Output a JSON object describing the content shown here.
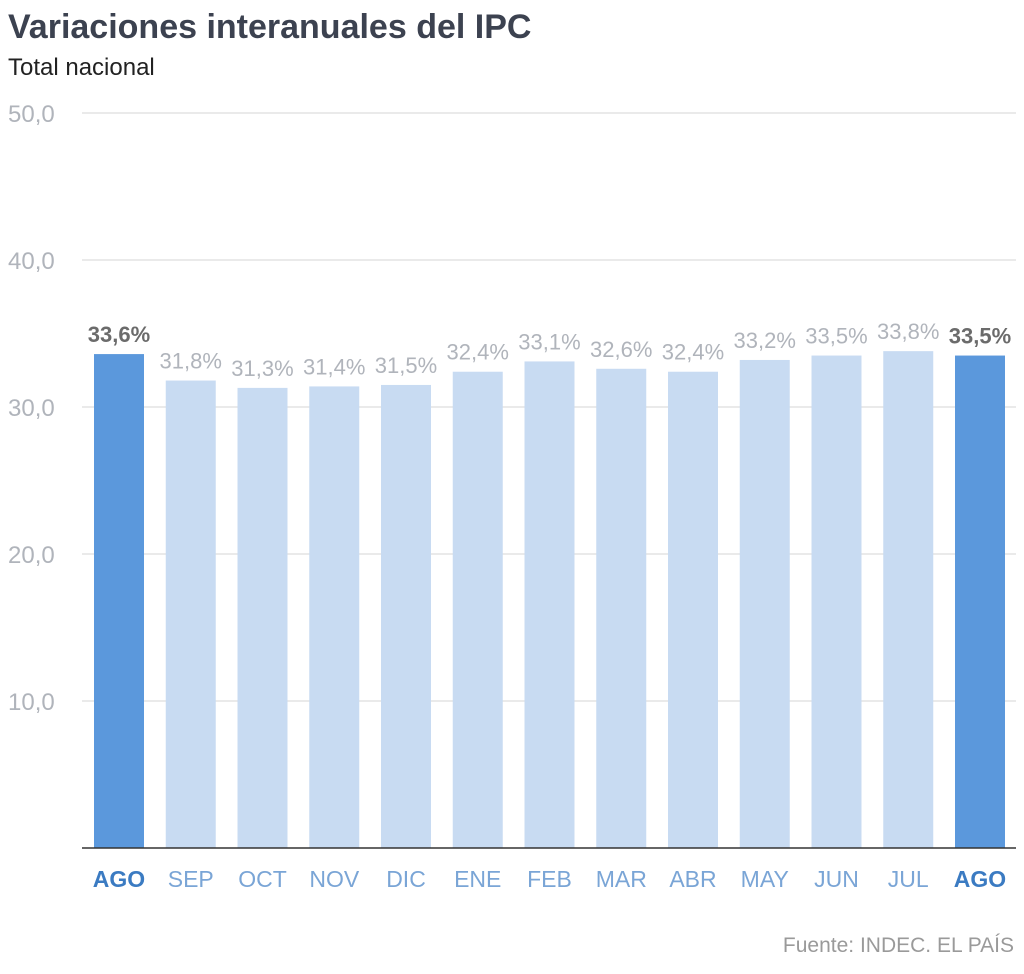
{
  "header": {
    "title": "Variaciones interanuales del IPC",
    "subtitle": "Total nacional"
  },
  "footer": {
    "source": "Fuente: INDEC. EL PAÍS"
  },
  "colors": {
    "highlight_bar": "#5b98dc",
    "bar": "#c8dbf2",
    "highlight_text": "#3b7bc2",
    "label_text": "#b0b4bb",
    "highlight_value_text": "#6b6b6b"
  },
  "chart_data": {
    "type": "bar",
    "title": "Variaciones interanuales del IPC",
    "subtitle": "Total nacional",
    "categories": [
      "AGO",
      "SEP",
      "OCT",
      "NOV",
      "DIC",
      "ENE",
      "FEB",
      "MAR",
      "ABR",
      "MAY",
      "JUN",
      "JUL",
      "AGO"
    ],
    "values": [
      33.6,
      31.8,
      31.3,
      31.4,
      31.5,
      32.4,
      33.1,
      32.6,
      32.4,
      33.2,
      33.5,
      33.8,
      33.5
    ],
    "value_labels": [
      "33,6%",
      "31,8%",
      "31,3%",
      "31,4%",
      "31,5%",
      "32,4%",
      "33,1%",
      "32,6%",
      "32,4%",
      "33,2%",
      "33,5%",
      "33,8%",
      "33,5%"
    ],
    "highlighted": [
      true,
      false,
      false,
      false,
      false,
      false,
      false,
      false,
      false,
      false,
      false,
      false,
      true
    ],
    "ylim": [
      0,
      50
    ],
    "yticks": [
      10,
      20,
      30,
      40,
      50
    ],
    "ytick_labels": [
      "10,0",
      "20,0",
      "30,0",
      "40,0",
      "50,0"
    ],
    "grid": true,
    "legend": "none"
  }
}
